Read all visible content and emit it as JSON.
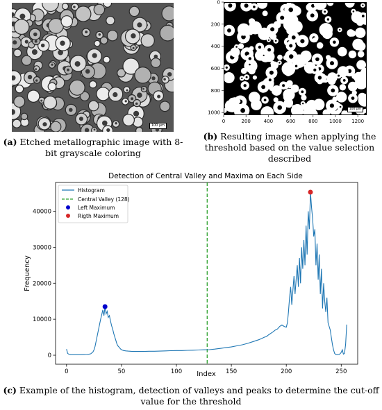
{
  "panel_a": {
    "caption_letter": "(a)",
    "caption_text": " Etched metallographic image with 8-bit grayscale coloring",
    "scale_bar": "100 μm"
  },
  "panel_b": {
    "caption_letter": "(b)",
    "caption_text": " Resulting image when applying the threshold based on the value selection described",
    "scale_bar": "100 μm",
    "x_ticks": [
      "0",
      "200",
      "400",
      "600",
      "800",
      "1000",
      "1200"
    ],
    "y_ticks": [
      "0",
      "200",
      "400",
      "600",
      "800",
      "1000"
    ]
  },
  "panel_c": {
    "caption_letter": "(c)",
    "caption_text": " Example of the histogram, detection of valleys and peaks to determine the cut-off value for the threshold"
  },
  "colors": {
    "line": "#1f77b4",
    "valley": "#2ca02c",
    "left_max": "#0000cc",
    "right_max": "#d62728"
  },
  "chart_data": {
    "type": "line",
    "title": "Detection of Central Valley and Maxima on Each Side",
    "xlabel": "Index",
    "ylabel": "Frequency",
    "xlim": [
      -10,
      265
    ],
    "ylim": [
      -2500,
      48000
    ],
    "x_ticks": [
      0,
      50,
      100,
      150,
      200,
      250
    ],
    "y_ticks": [
      0,
      10000,
      20000,
      30000,
      40000
    ],
    "legend": {
      "placement": "top-left",
      "entries": [
        "Histogram",
        "Central Valley (128)",
        "Left Maximum",
        "Rigth Maximum"
      ]
    },
    "series": [
      {
        "name": "Histogram",
        "x": [
          0,
          1,
          2,
          4,
          6,
          8,
          10,
          12,
          14,
          16,
          18,
          20,
          22,
          24,
          25,
          26,
          27,
          28,
          29,
          30,
          31,
          32,
          33,
          34,
          35,
          36,
          37,
          38,
          39,
          40,
          41,
          42,
          43,
          44,
          45,
          46,
          47,
          48,
          49,
          50,
          52,
          54,
          56,
          58,
          60,
          65,
          70,
          75,
          80,
          85,
          90,
          95,
          100,
          105,
          110,
          115,
          120,
          125,
          128,
          130,
          135,
          140,
          145,
          150,
          155,
          160,
          165,
          170,
          175,
          178,
          180,
          182,
          184,
          186,
          188,
          190,
          192,
          194,
          196,
          198,
          200,
          201,
          202,
          203,
          204,
          205,
          206,
          207,
          208,
          209,
          210,
          211,
          212,
          213,
          214,
          215,
          216,
          217,
          218,
          219,
          220,
          221,
          222,
          223,
          224,
          225,
          226,
          227,
          228,
          229,
          230,
          231,
          232,
          233,
          234,
          235,
          236,
          237,
          238,
          239,
          240,
          241,
          242,
          243,
          244,
          245,
          246,
          247,
          248,
          249,
          250,
          251,
          252,
          253,
          254,
          255
        ],
        "values": [
          1700,
          500,
          300,
          150,
          150,
          150,
          150,
          150,
          160,
          180,
          200,
          250,
          400,
          900,
          1500,
          2500,
          4000,
          5500,
          7000,
          8500,
          10000,
          11200,
          12600,
          11000,
          13500,
          11500,
          12200,
          10500,
          11000,
          9500,
          8200,
          7200,
          6000,
          5000,
          4000,
          3000,
          2500,
          2200,
          1800,
          1500,
          1300,
          1200,
          1150,
          1100,
          1050,
          1050,
          1050,
          1100,
          1100,
          1150,
          1200,
          1250,
          1300,
          1300,
          1350,
          1400,
          1450,
          1500,
          1500,
          1550,
          1700,
          1900,
          2100,
          2300,
          2600,
          2900,
          3300,
          3800,
          4300,
          4700,
          5000,
          5200,
          5700,
          6100,
          6500,
          7000,
          7300,
          8000,
          8400,
          8000,
          7800,
          9000,
          12000,
          16000,
          19000,
          14000,
          18000,
          22000,
          17000,
          21000,
          25000,
          19000,
          27000,
          20000,
          30000,
          24000,
          32000,
          25000,
          36000,
          28000,
          40000,
          35000,
          45300,
          41000,
          38000,
          33000,
          35000,
          25000,
          31000,
          21000,
          28000,
          17000,
          24000,
          13000,
          20000,
          15000,
          12000,
          16000,
          9000,
          8000,
          7000,
          5000,
          3000,
          1500,
          500,
          200,
          150,
          150,
          200,
          400,
          800,
          1500,
          300,
          500,
          3000,
          8500
        ]
      }
    ],
    "central_valley": 128,
    "left_maximum": {
      "x": 35,
      "y": 13500
    },
    "right_maximum": {
      "x": 222,
      "y": 45300
    }
  }
}
